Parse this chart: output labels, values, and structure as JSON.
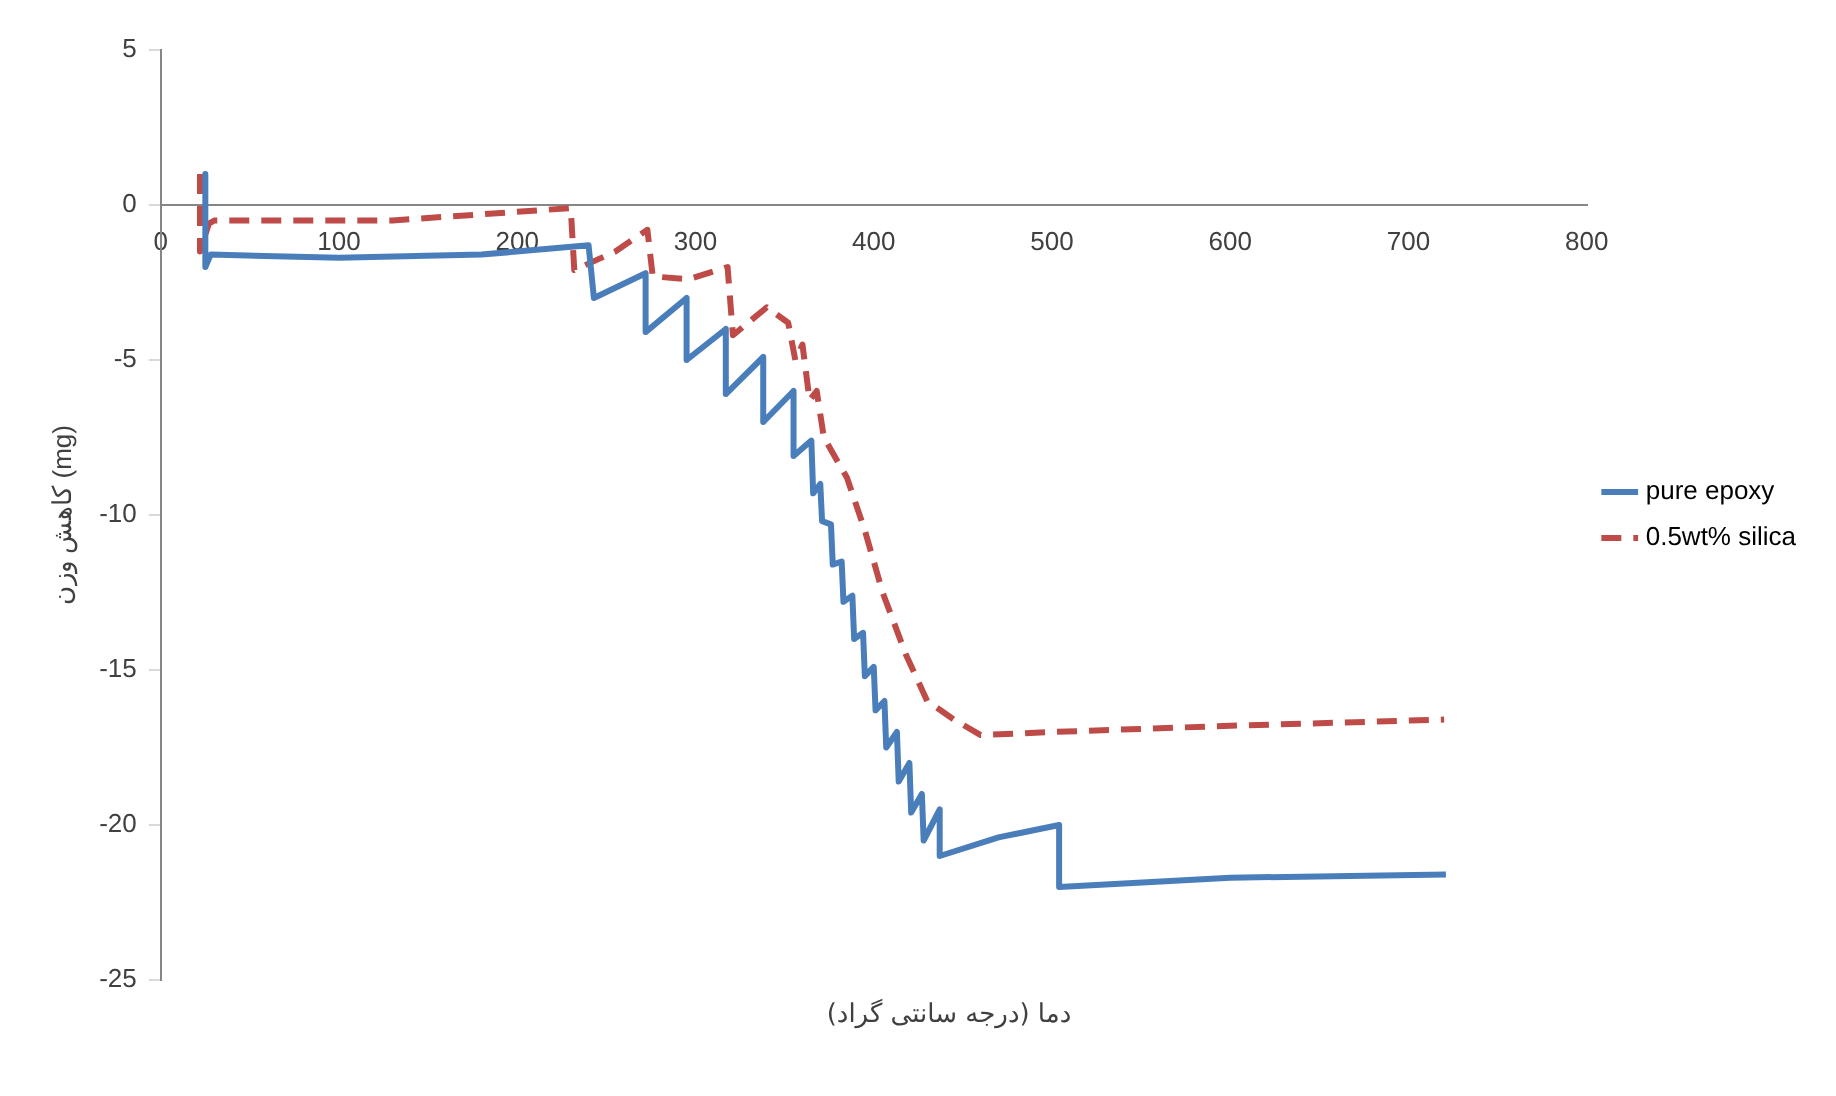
{
  "chart_data": {
    "type": "line",
    "xlabel": "دما (درجه سانتی گراد)",
    "ylabel": "کاهش وزن (mg)",
    "xlim": [
      0,
      800
    ],
    "xticks": [
      0,
      100,
      200,
      300,
      400,
      500,
      600,
      700,
      800
    ],
    "ylim": [
      -25,
      5
    ],
    "yticks": [
      -25,
      -20,
      -15,
      -10,
      -5,
      0,
      5
    ],
    "grid": false,
    "legend": "right",
    "marker": "none",
    "series": [
      {
        "name": "pure epoxy",
        "color": "#4a7ebb",
        "line_style": "solid",
        "x": [
          25,
          25,
          28,
          100,
          180,
          240,
          243,
          272,
          272,
          295,
          295,
          317,
          317,
          338,
          338,
          355,
          355,
          365,
          366,
          370,
          371,
          376,
          377,
          382,
          383,
          388,
          389,
          394,
          395,
          400,
          401,
          406,
          407,
          413,
          414,
          420,
          421,
          427,
          428,
          437,
          437,
          470,
          504,
          504,
          600,
          721
        ],
        "values": [
          1,
          -2,
          -1.6,
          -1.7,
          -1.6,
          -1.3,
          -3.0,
          -2.2,
          -4.1,
          -3.0,
          -5.0,
          -4.0,
          -6.1,
          -4.9,
          -7.0,
          -6.0,
          -8.1,
          -7.6,
          -9.3,
          -9.0,
          -10.2,
          -10.3,
          -11.6,
          -11.5,
          -12.8,
          -12.6,
          -14.0,
          -13.8,
          -15.2,
          -14.9,
          -16.3,
          -16.0,
          -17.5,
          -17.0,
          -18.6,
          -18.0,
          -19.6,
          -19.0,
          -20.5,
          -19.5,
          -21.0,
          -20.4,
          -20.0,
          -22.0,
          -21.7,
          -21.6
        ]
      },
      {
        "name": "0.5wt% silica",
        "color": "#be4b48",
        "line_style": "dashed",
        "x": [
          22,
          22,
          27,
          30,
          130,
          230,
          232,
          255,
          273,
          276,
          296,
          318,
          321,
          340,
          352,
          356,
          360,
          364,
          368,
          372,
          385,
          395,
          405,
          418,
          430,
          445,
          460,
          500,
          600,
          720
        ],
        "values": [
          1,
          -1.5,
          -0.6,
          -0.5,
          -0.5,
          -0.1,
          -2.1,
          -1.5,
          -0.8,
          -2.3,
          -2.4,
          -2.0,
          -4.2,
          -3.3,
          -3.8,
          -5.0,
          -4.5,
          -6.3,
          -6.0,
          -7.5,
          -8.8,
          -10.5,
          -12.5,
          -14.5,
          -16.0,
          -16.6,
          -17.1,
          -17.0,
          -16.8,
          -16.6
        ]
      }
    ]
  }
}
